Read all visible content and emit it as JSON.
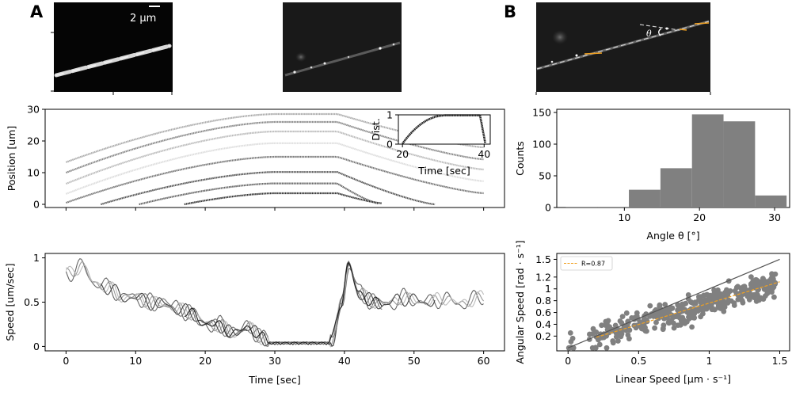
{
  "panel_letters": [
    "A",
    "B"
  ],
  "micrographs": {
    "scale_bar_label": "2 μm",
    "angle_symbol": "θ"
  },
  "chart_data": [
    {
      "id": "position",
      "type": "line",
      "xlabel": "",
      "ylabel": "Position [um]",
      "xlim": [
        -3,
        63
      ],
      "ylim": [
        -1,
        30
      ],
      "xticks": [
        0,
        10,
        20,
        30,
        40,
        50,
        60
      ],
      "yticks": [
        0,
        10,
        20,
        30
      ],
      "series": [
        {
          "x_start": 0,
          "x_end": 60,
          "plateau_start": 30,
          "plateau_end": 39,
          "y_start": 13.3,
          "y_plateau": 28.5,
          "y_end": 18.0,
          "color": "#aaaaaa"
        },
        {
          "x_start": 0,
          "x_end": 60,
          "plateau_start": 30,
          "plateau_end": 39,
          "y_start": 10.0,
          "y_plateau": 26.0,
          "y_end": 14.2,
          "color": "#888888"
        },
        {
          "x_start": 0,
          "x_end": 60,
          "plateau_start": 30,
          "plateau_end": 39,
          "y_start": 6.5,
          "y_plateau": 23.0,
          "y_end": 11.0,
          "color": "#bbbbbb"
        },
        {
          "x_start": 0,
          "x_end": 60,
          "plateau_start": 30,
          "plateau_end": 39,
          "y_start": 3.3,
          "y_plateau": 19.3,
          "y_end": 7.3,
          "color": "#dddddd"
        },
        {
          "x_start": 0,
          "x_end": 60,
          "plateau_start": 30,
          "plateau_end": 39,
          "y_start": 0.5,
          "y_plateau": 15.0,
          "y_end": 3.5,
          "color": "#777777"
        },
        {
          "x_start": 5,
          "x_end": 53,
          "plateau_start": 30,
          "plateau_end": 39,
          "y_start": 0.0,
          "y_plateau": 10.2,
          "y_end": 0.0,
          "color": "#555555"
        },
        {
          "x_start": 10.5,
          "x_end": 45,
          "plateau_start": 30,
          "plateau_end": 39,
          "y_start": 0.0,
          "y_plateau": 6.6,
          "y_end": 0.2,
          "color": "#666666"
        },
        {
          "x_start": 17,
          "x_end": 45.5,
          "plateau_start": 30,
          "plateau_end": 39,
          "y_start": 0.0,
          "y_plateau": 3.5,
          "y_end": 0.3,
          "color": "#333333"
        }
      ]
    },
    {
      "id": "position-inset",
      "type": "line",
      "xlabel": "Time [sec]",
      "ylabel": "Dist.",
      "xlim": [
        19,
        41.5
      ],
      "ylim": [
        0,
        1
      ],
      "xticks": [
        20,
        40
      ],
      "yticks": [
        0,
        1
      ],
      "rise_start": 20,
      "plateau_start": 31,
      "plateau_end": 39,
      "fall_end": 40.3
    },
    {
      "id": "speed",
      "type": "line",
      "xlabel": "Time [sec]",
      "ylabel": "Speed [um/sec]",
      "xlim": [
        -3,
        63
      ],
      "ylim": [
        -0.05,
        1.05
      ],
      "xticks": [
        0,
        10,
        20,
        30,
        40,
        50,
        60
      ],
      "yticks": [
        0.0,
        0.5,
        1.0
      ],
      "knots_x": [
        0,
        2,
        4,
        6,
        8,
        10,
        12,
        14,
        16,
        18,
        20,
        22,
        24,
        26,
        28,
        30,
        32,
        34,
        36,
        38,
        39.5,
        40.5,
        42,
        44,
        46,
        48,
        50,
        52,
        54,
        56,
        58,
        60
      ],
      "knots_y": [
        0.83,
        0.9,
        0.72,
        0.66,
        0.56,
        0.55,
        0.5,
        0.48,
        0.42,
        0.37,
        0.25,
        0.24,
        0.14,
        0.22,
        0.1,
        0.02,
        0.02,
        0.02,
        0.02,
        0.05,
        0.5,
        0.92,
        0.6,
        0.5,
        0.47,
        0.55,
        0.52,
        0.5,
        0.55,
        0.48,
        0.52,
        0.56
      ],
      "series": [
        {
          "color": "#666666",
          "x_start": 0,
          "x_end": 60,
          "seed": 1
        },
        {
          "color": "#999999",
          "x_start": 0,
          "x_end": 60,
          "seed": 2
        },
        {
          "color": "#bbbbbb",
          "x_start": 0,
          "x_end": 60,
          "seed": 3
        },
        {
          "color": "#444444",
          "x_start": 5,
          "x_end": 53,
          "seed": 4
        },
        {
          "color": "#777777",
          "x_start": 10,
          "x_end": 45.5,
          "seed": 5
        },
        {
          "color": "#222222",
          "x_start": 17,
          "x_end": 45.5,
          "seed": 6
        }
      ]
    },
    {
      "id": "angle-histogram",
      "type": "bar",
      "xlabel": "Angle θ [°]",
      "ylabel": "Counts",
      "xlim": [
        1,
        32
      ],
      "ylim": [
        0,
        155
      ],
      "xticks": [
        10,
        20,
        30
      ],
      "yticks": [
        0,
        50,
        100,
        150
      ],
      "bins": [
        {
          "x0": 2.2,
          "x1": 6.4,
          "count": 1
        },
        {
          "x0": 6.4,
          "x1": 10.6,
          "count": 1
        },
        {
          "x0": 10.6,
          "x1": 14.8,
          "count": 28
        },
        {
          "x0": 14.8,
          "x1": 19.0,
          "count": 62
        },
        {
          "x0": 19.0,
          "x1": 23.2,
          "count": 147
        },
        {
          "x0": 23.2,
          "x1": 27.4,
          "count": 136
        },
        {
          "x0": 27.4,
          "x1": 31.6,
          "count": 19
        }
      ],
      "color": "#808080"
    },
    {
      "id": "speed-correlation",
      "type": "scatter",
      "xlabel": "Linear Speed [μm · s⁻¹]",
      "ylabel": "Angular Speed [rad · s⁻¹]",
      "xlim": [
        -0.08,
        1.57
      ],
      "ylim": [
        -0.05,
        1.6
      ],
      "xticks": [
        0.0,
        0.5,
        1.0,
        1.5
      ],
      "yticks": [
        0.2,
        0.4,
        0.6,
        0.8,
        1.0,
        1.2,
        1.5
      ],
      "legend": "R=0.87",
      "legend_position": "top-left",
      "identity_line": {
        "x0": 0,
        "y0": 0,
        "x1": 1.5,
        "y1": 1.5,
        "color": "#555555"
      },
      "fit_line": {
        "x0": 0.2,
        "y0": 0.18,
        "x1": 1.5,
        "y1": 1.12,
        "color": "#f0a020"
      },
      "point_color": "#808080",
      "point_count": 420
    }
  ]
}
